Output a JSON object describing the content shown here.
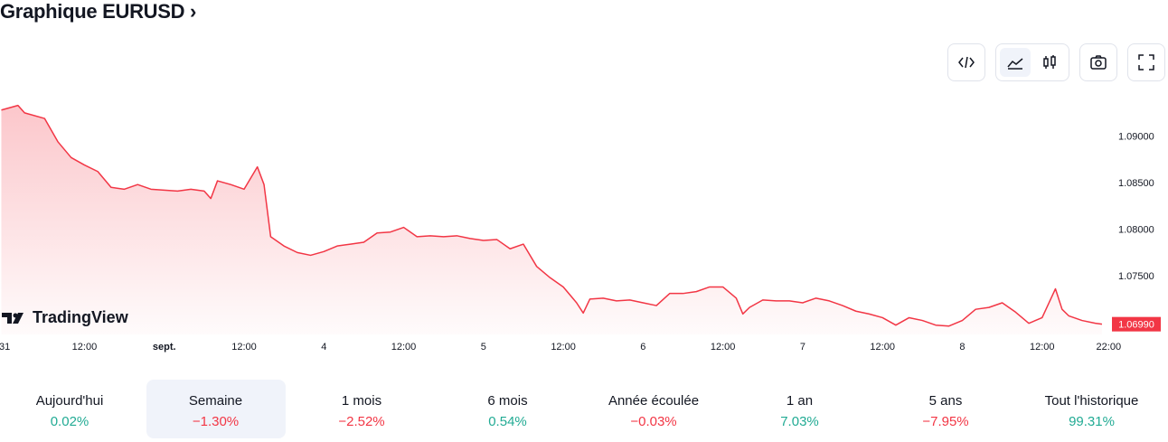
{
  "header": {
    "title": "Graphique EURUSD ›"
  },
  "brand": "TradingView",
  "chart_data": {
    "type": "area",
    "color": "#f23645",
    "x": [
      -0.5,
      2,
      3,
      6,
      8,
      10,
      12,
      14,
      16,
      18,
      20,
      22,
      24,
      26,
      28,
      30,
      31,
      32,
      34,
      36,
      38,
      39,
      40,
      42,
      44,
      46,
      48,
      50,
      52,
      54,
      56,
      58,
      60,
      62,
      64,
      66,
      68,
      70,
      72,
      74,
      76,
      78,
      80,
      82,
      84,
      86,
      87,
      88,
      90,
      92,
      94,
      96,
      98,
      100,
      102,
      104,
      106,
      108,
      110,
      111,
      112,
      114,
      116,
      118,
      120,
      122,
      124,
      126,
      128,
      130,
      132,
      134,
      136,
      138,
      140,
      142,
      144,
      146,
      148,
      150,
      152,
      154,
      156,
      158,
      159,
      160,
      162,
      164,
      165
    ],
    "series": [
      {
        "name": "EURUSD",
        "color": "#f23645",
        "values": [
          1.0929,
          1.0934,
          1.0926,
          1.092,
          1.0895,
          1.0878,
          1.087,
          1.0863,
          1.0846,
          1.0844,
          1.0849,
          1.0844,
          1.0843,
          1.0842,
          1.0844,
          1.0842,
          1.0834,
          1.0853,
          1.0849,
          1.0844,
          1.0868,
          1.0849,
          1.0793,
          1.0783,
          1.0776,
          1.0773,
          1.0777,
          1.0783,
          1.0785,
          1.0787,
          1.0797,
          1.0798,
          1.0803,
          1.0793,
          1.0794,
          1.0793,
          1.0794,
          1.0791,
          1.0789,
          1.079,
          1.078,
          1.0785,
          1.0761,
          1.0749,
          1.0739,
          1.0722,
          1.0711,
          1.0726,
          1.0727,
          1.0724,
          1.0725,
          1.0722,
          1.0719,
          1.0732,
          1.0732,
          1.0734,
          1.0739,
          1.0739,
          1.0727,
          1.071,
          1.0717,
          1.0725,
          1.0724,
          1.0724,
          1.0722,
          1.0727,
          1.0724,
          1.0719,
          1.0713,
          1.071,
          1.0706,
          1.0698,
          1.0706,
          1.0703,
          1.0698,
          1.0697,
          1.0703,
          1.0715,
          1.0717,
          1.0722,
          1.0712,
          1.07,
          1.0706,
          1.0737,
          1.0715,
          1.0708,
          1.0703,
          1.07,
          1.0699
        ]
      }
    ],
    "xlim": [
      -0.7,
      166.5
    ],
    "ylim": [
      1.0688,
      1.0955
    ],
    "xticks": [
      {
        "value": 0,
        "label": "31"
      },
      {
        "value": 12,
        "label": "12:00"
      },
      {
        "value": 24,
        "label": "sept."
      },
      {
        "value": 36,
        "label": "12:00"
      },
      {
        "value": 48,
        "label": "4"
      },
      {
        "value": 60,
        "label": "12:00"
      },
      {
        "value": 72,
        "label": "5"
      },
      {
        "value": 84,
        "label": "12:00"
      },
      {
        "value": 96,
        "label": "6"
      },
      {
        "value": 108,
        "label": "12:00"
      },
      {
        "value": 120,
        "label": "7"
      },
      {
        "value": 132,
        "label": "12:00"
      },
      {
        "value": 144,
        "label": "8"
      },
      {
        "value": 156,
        "label": "12:00"
      },
      {
        "value": 166,
        "label": "22:00"
      }
    ],
    "yticks": [
      {
        "value": 1.075,
        "label": "1.07500"
      },
      {
        "value": 1.08,
        "label": "1.08000"
      },
      {
        "value": 1.085,
        "label": "1.08500"
      },
      {
        "value": 1.09,
        "label": "1.09000"
      }
    ],
    "last_price": {
      "value": 1.0699,
      "label": "1.06990"
    }
  },
  "periods": [
    {
      "label": "Aujourd'hui",
      "change": "0.02%"
    },
    {
      "label": "Semaine",
      "change": "−1.30%",
      "selected": true
    },
    {
      "label": "1 mois",
      "change": "−2.52%"
    },
    {
      "label": "6 mois",
      "change": "0.54%"
    },
    {
      "label": "Année écoulée",
      "change": "−0.03%"
    },
    {
      "label": "1 an",
      "change": "7.03%"
    },
    {
      "label": "5 ans",
      "change": "−7.95%"
    },
    {
      "label": "Tout l'historique",
      "change": "99.31%"
    }
  ]
}
